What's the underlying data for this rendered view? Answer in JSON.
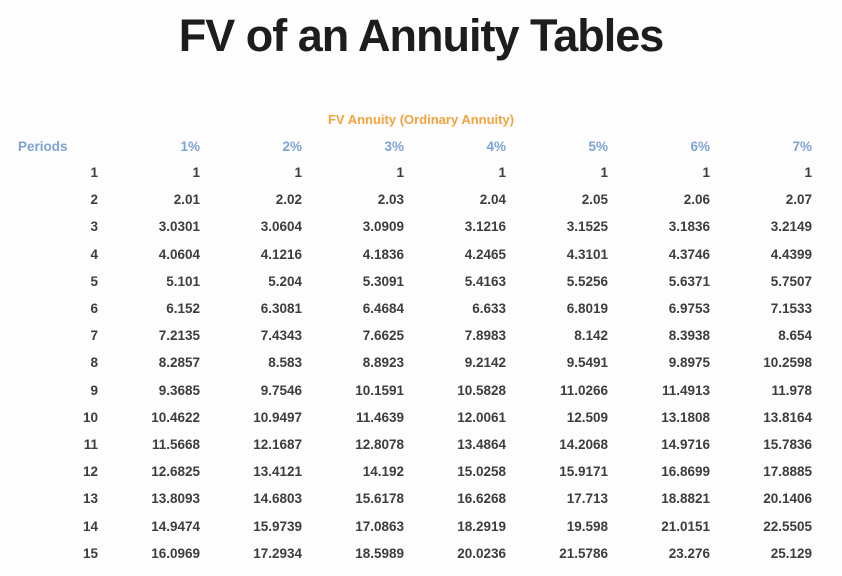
{
  "page": {
    "title": "FV of an Annuity Tables"
  },
  "table": {
    "subtitle": "FV Annuity (Ordinary Annuity)",
    "period_header": "Periods",
    "rate_headers": [
      "1%",
      "2%",
      "3%",
      "4%",
      "5%",
      "6%",
      "7%"
    ],
    "rows": [
      {
        "period": "1",
        "values": [
          "1",
          "1",
          "1",
          "1",
          "1",
          "1",
          "1"
        ]
      },
      {
        "period": "2",
        "values": [
          "2.01",
          "2.02",
          "2.03",
          "2.04",
          "2.05",
          "2.06",
          "2.07"
        ]
      },
      {
        "period": "3",
        "values": [
          "3.0301",
          "3.0604",
          "3.0909",
          "3.1216",
          "3.1525",
          "3.1836",
          "3.2149"
        ]
      },
      {
        "period": "4",
        "values": [
          "4.0604",
          "4.1216",
          "4.1836",
          "4.2465",
          "4.3101",
          "4.3746",
          "4.4399"
        ]
      },
      {
        "period": "5",
        "values": [
          "5.101",
          "5.204",
          "5.3091",
          "5.4163",
          "5.5256",
          "5.6371",
          "5.7507"
        ]
      },
      {
        "period": "6",
        "values": [
          "6.152",
          "6.3081",
          "6.4684",
          "6.633",
          "6.8019",
          "6.9753",
          "7.1533"
        ]
      },
      {
        "period": "7",
        "values": [
          "7.2135",
          "7.4343",
          "7.6625",
          "7.8983",
          "8.142",
          "8.3938",
          "8.654"
        ]
      },
      {
        "period": "8",
        "values": [
          "8.2857",
          "8.583",
          "8.8923",
          "9.2142",
          "9.5491",
          "9.8975",
          "10.2598"
        ]
      },
      {
        "period": "9",
        "values": [
          "9.3685",
          "9.7546",
          "10.1591",
          "10.5828",
          "11.0266",
          "11.4913",
          "11.978"
        ]
      },
      {
        "period": "10",
        "values": [
          "10.4622",
          "10.9497",
          "11.4639",
          "12.0061",
          "12.509",
          "13.1808",
          "13.8164"
        ]
      },
      {
        "period": "11",
        "values": [
          "11.5668",
          "12.1687",
          "12.8078",
          "13.4864",
          "14.2068",
          "14.9716",
          "15.7836"
        ]
      },
      {
        "period": "12",
        "values": [
          "12.6825",
          "13.4121",
          "14.192",
          "15.0258",
          "15.9171",
          "16.8699",
          "17.8885"
        ]
      },
      {
        "period": "13",
        "values": [
          "13.8093",
          "14.6803",
          "15.6178",
          "16.6268",
          "17.713",
          "18.8821",
          "20.1406"
        ]
      },
      {
        "period": "14",
        "values": [
          "14.9474",
          "15.9739",
          "17.0863",
          "18.2919",
          "19.598",
          "21.0151",
          "22.5505"
        ]
      },
      {
        "period": "15",
        "values": [
          "16.0969",
          "17.2934",
          "18.5989",
          "20.0236",
          "21.5786",
          "23.276",
          "25.129"
        ]
      }
    ]
  },
  "colors": {
    "bg": "#fdfdfd",
    "title": "#1f1c1d",
    "subtitle": "#f2a33c",
    "header": "#7da3d4",
    "data": "#3d3d3d"
  }
}
